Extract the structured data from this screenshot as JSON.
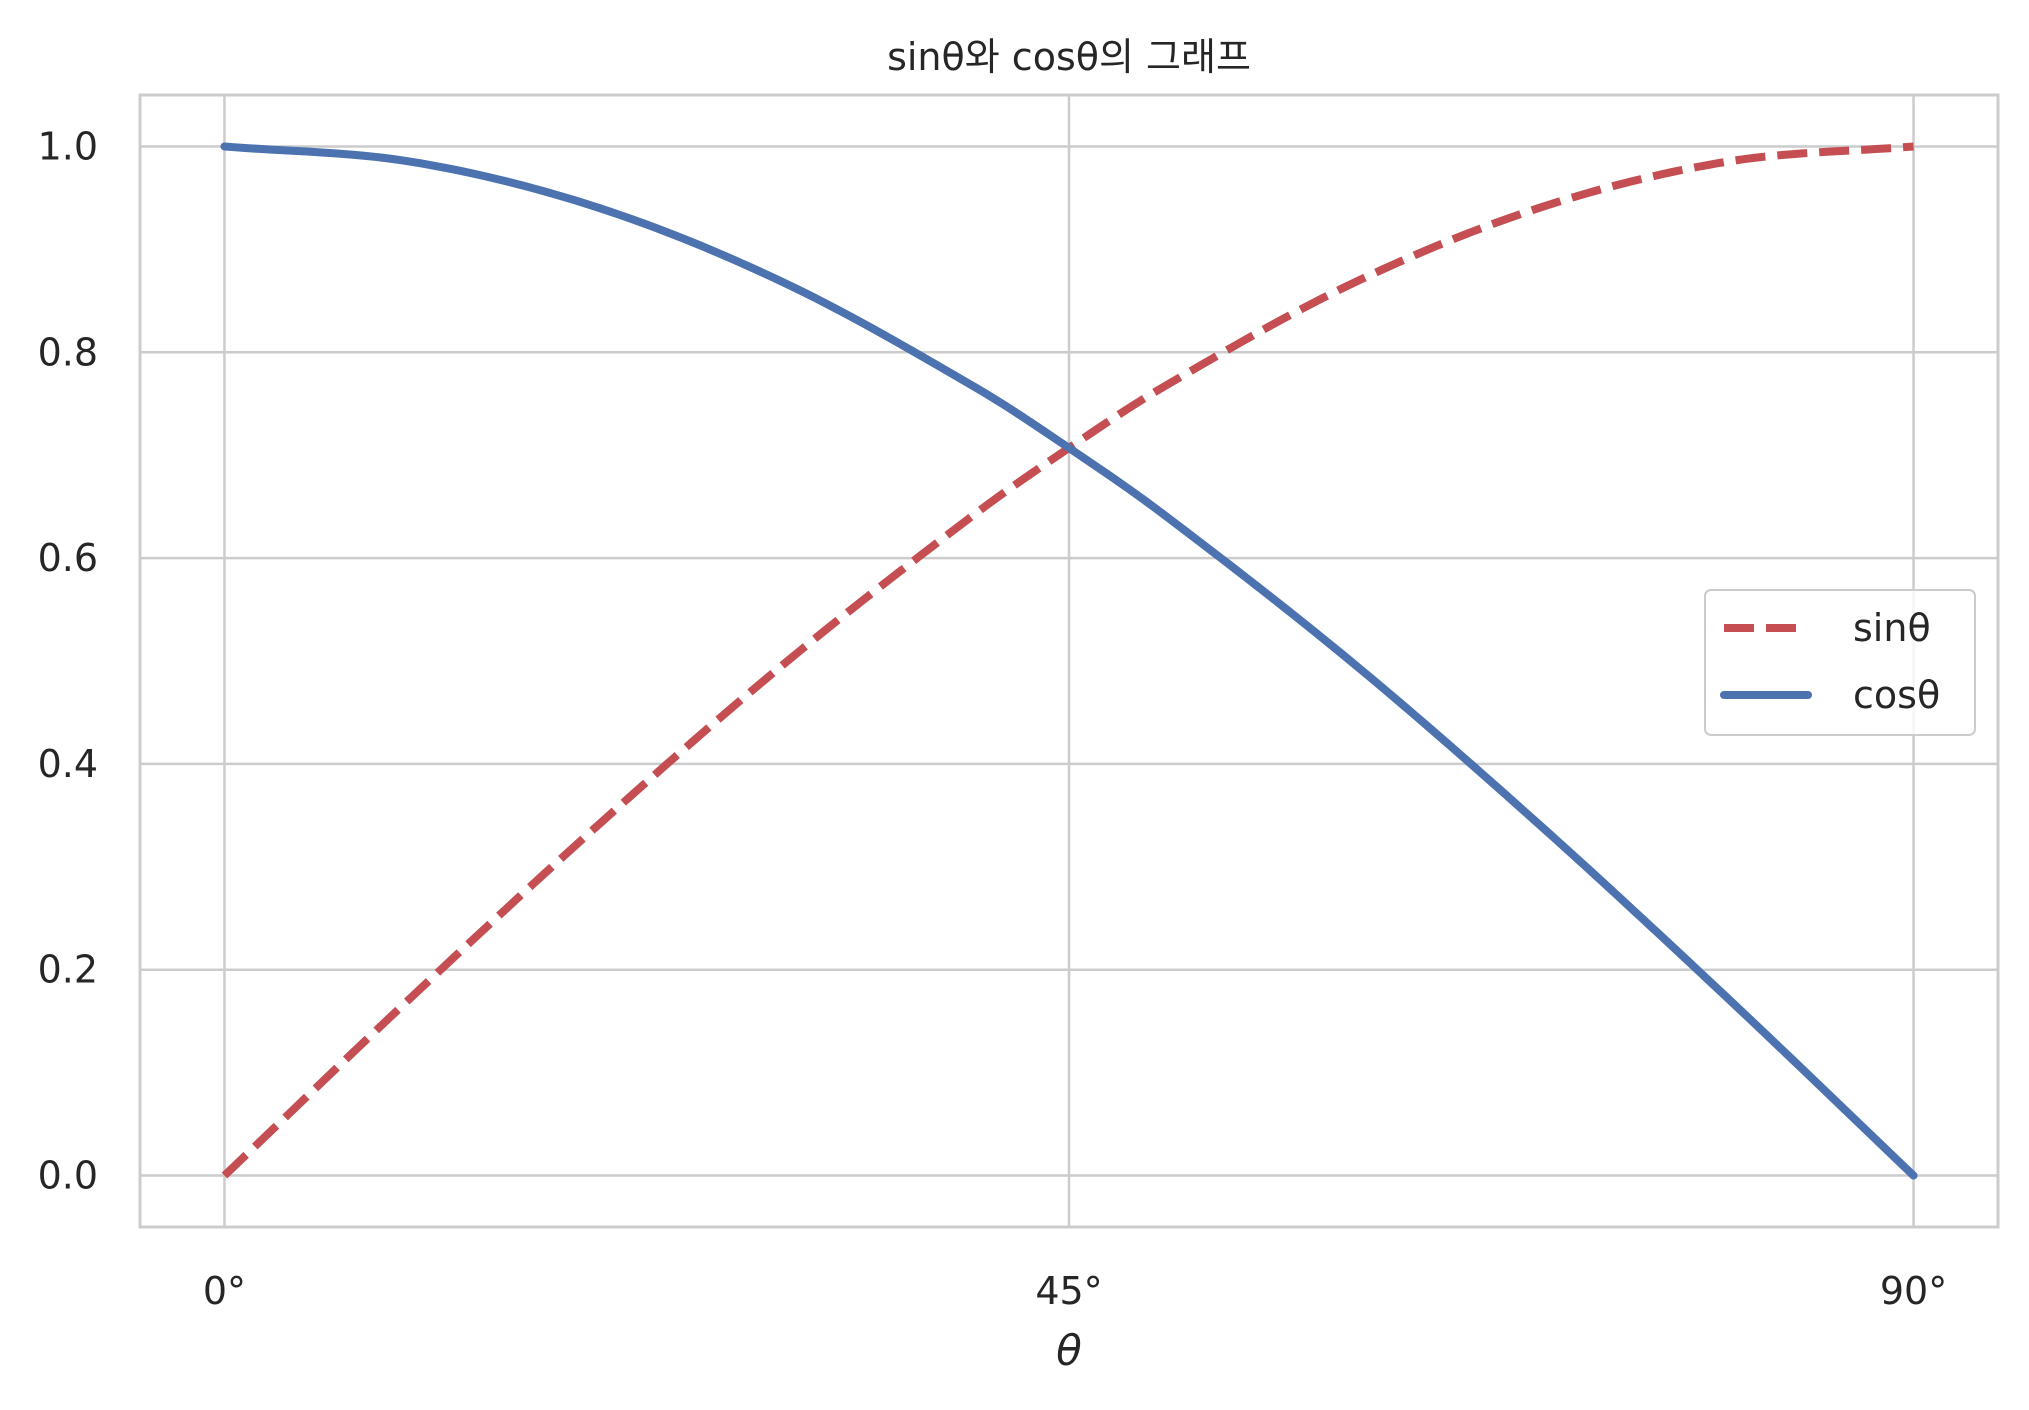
{
  "chart_data": {
    "type": "line",
    "title": "sinθ와 cosθ의 그래프",
    "xlabel": "θ",
    "ylabel": "",
    "xlim": [
      -4.5,
      94.5
    ],
    "ylim": [
      -0.05,
      1.05
    ],
    "x_ticks": [
      {
        "value": 0,
        "label": "0°"
      },
      {
        "value": 45,
        "label": "45°"
      },
      {
        "value": 90,
        "label": "90°"
      }
    ],
    "y_ticks": [
      {
        "value": 0.0,
        "label": "0.0"
      },
      {
        "value": 0.2,
        "label": "0.2"
      },
      {
        "value": 0.4,
        "label": "0.4"
      },
      {
        "value": 0.6,
        "label": "0.6"
      },
      {
        "value": 0.8,
        "label": "0.8"
      },
      {
        "value": 1.0,
        "label": "1.0"
      }
    ],
    "grid": true,
    "legend_position": "center-right",
    "x": [
      0,
      10,
      20,
      30,
      40,
      45,
      50,
      60,
      70,
      80,
      90
    ],
    "series": [
      {
        "name": "sinθ",
        "values": [
          0.0,
          0.174,
          0.342,
          0.5,
          0.643,
          0.707,
          0.766,
          0.866,
          0.94,
          0.985,
          1.0
        ],
        "color": "#c44e52",
        "style": "dashed"
      },
      {
        "name": "cosθ",
        "values": [
          1.0,
          0.985,
          0.94,
          0.866,
          0.766,
          0.707,
          0.643,
          0.5,
          0.342,
          0.174,
          0.0
        ],
        "color": "#4c72b0",
        "style": "solid"
      }
    ]
  },
  "colors": {
    "grid": "#cccccc",
    "frame": "#cccccc",
    "background": "#ffffff",
    "text": "#262626"
  }
}
